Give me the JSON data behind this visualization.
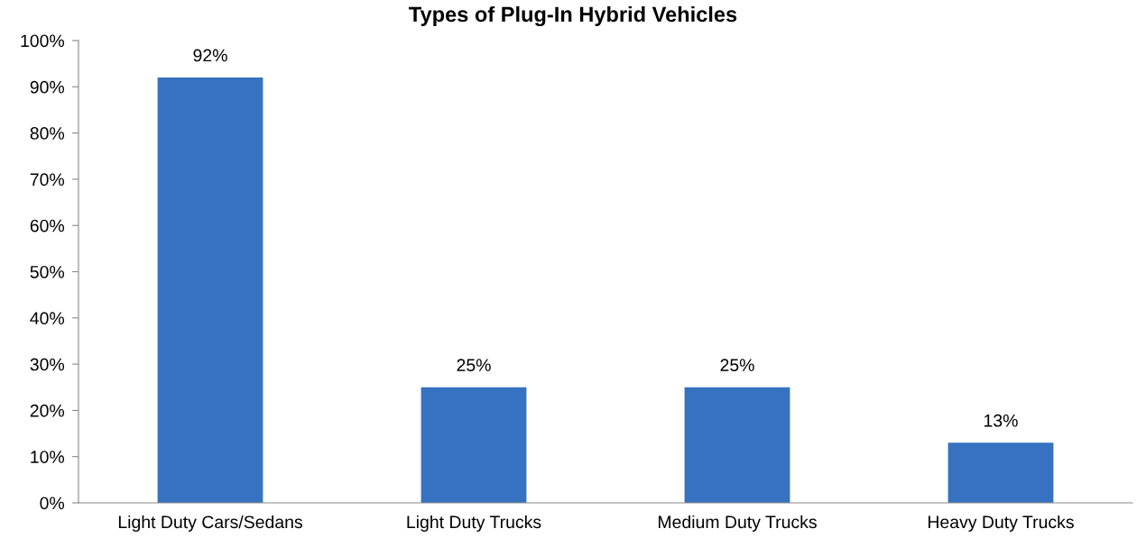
{
  "chart_data": {
    "type": "bar",
    "title": "Types of Plug-In Hybrid Vehicles",
    "categories": [
      "Light Duty Cars/Sedans",
      "Light Duty Trucks",
      "Medium Duty Trucks",
      "Heavy Duty Trucks"
    ],
    "values": [
      92,
      25,
      25,
      13
    ],
    "color": "#3672c0",
    "value_labels": [
      "92%",
      "25%",
      "25%",
      "13%"
    ],
    "ylim": [
      0,
      100
    ],
    "yticks": [
      {
        "value": 0,
        "label": "0%"
      },
      {
        "value": 10,
        "label": "10%"
      },
      {
        "value": 20,
        "label": "20%"
      },
      {
        "value": 30,
        "label": "30%"
      },
      {
        "value": 40,
        "label": "40%"
      },
      {
        "value": 50,
        "label": "50%"
      },
      {
        "value": 60,
        "label": "60%"
      },
      {
        "value": 70,
        "label": "70%"
      },
      {
        "value": 80,
        "label": "80%"
      },
      {
        "value": 90,
        "label": "90%"
      },
      {
        "value": 100,
        "label": "100%"
      }
    ],
    "grid": false,
    "legend": false
  }
}
